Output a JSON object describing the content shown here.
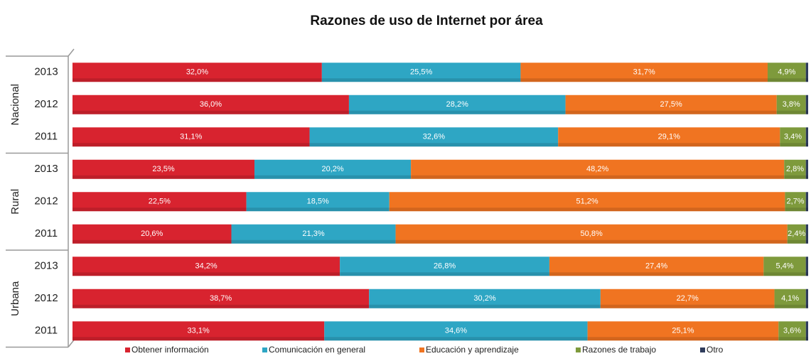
{
  "chart_data": {
    "type": "stacked_barh_percent",
    "title": "Razones de uso de Internet por área",
    "group_labels": [
      "Nacional",
      "Rural",
      "Urbana"
    ],
    "categories": [
      "2013",
      "2012",
      "2011",
      "2013",
      "2012",
      "2011",
      "2013",
      "2012",
      "2011"
    ],
    "series": [
      {
        "name": "Obtener información",
        "color": "#d8232f",
        "values": [
          32.0,
          36.0,
          31.1,
          23.5,
          22.5,
          20.6,
          34.2,
          38.7,
          33.1
        ],
        "value_labels": [
          "32,0%",
          "36,0%",
          "31,1%",
          "23,5%",
          "22,5%",
          "20,6%",
          "34,2%",
          "38,7%",
          "33,1%"
        ]
      },
      {
        "name": "Comunicación en general",
        "color": "#2ea6c4",
        "values": [
          25.5,
          28.2,
          32.6,
          20.2,
          18.5,
          21.3,
          26.8,
          30.2,
          34.6
        ],
        "value_labels": [
          "25,5%",
          "28,2%",
          "32,6%",
          "20,2%",
          "18,5%",
          "21,3%",
          "26,8%",
          "30,2%",
          "34,6%"
        ]
      },
      {
        "name": "Educación y aprendizaje",
        "color": "#f07421",
        "values": [
          31.7,
          27.5,
          29.1,
          48.2,
          51.2,
          50.8,
          27.4,
          22.7,
          25.1
        ],
        "value_labels": [
          "31,7%",
          "27,5%",
          "29,1%",
          "48,2%",
          "51,2%",
          "50,8%",
          "27,4%",
          "22,7%",
          "25,1%"
        ]
      },
      {
        "name": "Razones de trabajo",
        "color": "#7e9a3c",
        "values": [
          4.9,
          3.8,
          3.4,
          2.8,
          2.7,
          2.4,
          5.4,
          4.1,
          3.6
        ],
        "value_labels": [
          "4,9%",
          "3,8%",
          "3,4%",
          "2,8%",
          "2,7%",
          "2,4%",
          "5,4%",
          "4,1%",
          "3,6%"
        ]
      },
      {
        "name": "Otro",
        "color": "#2f3c5c",
        "values": [
          0.3,
          0.3,
          0.3,
          0.3,
          0.3,
          0.3,
          0.3,
          0.3,
          0.3
        ]
      }
    ]
  }
}
